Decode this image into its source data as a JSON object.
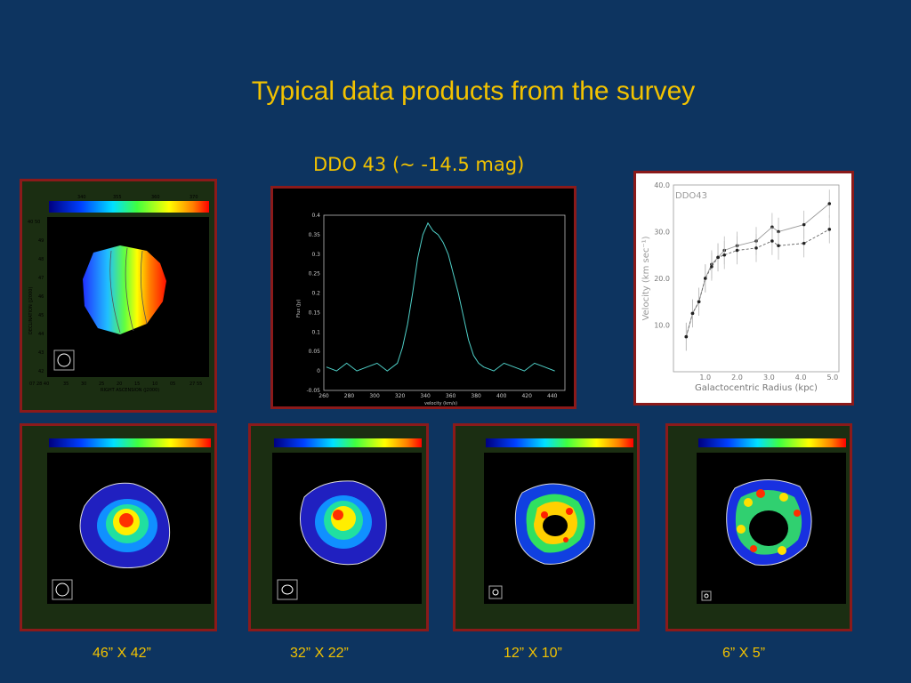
{
  "slide": {
    "title": "Typical data products from the survey",
    "subtitle": "DDO 43 (~ -14.5 mag)"
  },
  "velocity_map": {
    "colorbar_ticks": [
      "340",
      "355",
      "360",
      "370"
    ],
    "dec_ticks": [
      "40 50",
      "49",
      "48",
      "47",
      "46",
      "45",
      "44",
      "43",
      "42"
    ],
    "ra_ticks": [
      "07 28 40",
      "35",
      "30",
      "25",
      "20",
      "15",
      "10",
      "05",
      "27 55"
    ],
    "ylabel": "DECLINATION (J2000)",
    "xlabel": "RIGHT ASCENSION (J2000)"
  },
  "spectrum": {
    "ylabel": "Flux (Jy)",
    "xlabel": "velocity (km/s)",
    "y_ticks": [
      "0.4",
      "0.35",
      "0.3",
      "0.25",
      "0.2",
      "0.15",
      "0.1",
      "0.05",
      "0",
      "-0.05"
    ],
    "x_ticks": [
      "260",
      "280",
      "300",
      "320",
      "340",
      "360",
      "380",
      "400",
      "420",
      "440"
    ]
  },
  "rotation_curve": {
    "label": "DDO43",
    "ylabel": "Velocity (km sec⁻¹)",
    "xlabel": "Galactocentric Radius (kpc)",
    "y_ticks": [
      "40.0",
      "30.0",
      "20.0",
      "10.0"
    ],
    "x_ticks": [
      "1.0",
      "2.0",
      "3.0",
      "4.0",
      "5.0"
    ]
  },
  "chart_data": [
    {
      "type": "line",
      "title": "",
      "xlabel": "velocity (km/s)",
      "ylabel": "Flux (Jy)",
      "xlim": [
        260,
        450
      ],
      "ylim": [
        -0.05,
        0.4
      ],
      "series": [
        {
          "x": [
            262,
            270,
            278,
            286,
            294,
            302,
            310,
            318,
            322,
            326,
            330,
            334,
            338,
            342,
            346,
            350,
            354,
            358,
            362,
            366,
            370,
            374,
            378,
            382,
            386,
            394,
            402,
            410,
            418,
            426,
            434,
            442
          ],
          "values": [
            0.01,
            0.0,
            0.02,
            0.0,
            0.01,
            0.02,
            0.0,
            0.02,
            0.06,
            0.12,
            0.2,
            0.29,
            0.35,
            0.38,
            0.36,
            0.35,
            0.33,
            0.3,
            0.25,
            0.2,
            0.14,
            0.08,
            0.04,
            0.02,
            0.01,
            0.0,
            0.02,
            0.01,
            0.0,
            0.02,
            0.01,
            0.0
          ]
        }
      ]
    },
    {
      "type": "line",
      "title": "",
      "xlabel": "Galactocentric Radius (kpc)",
      "ylabel": "Velocity (km sec⁻¹)",
      "xlim": [
        0,
        5.2
      ],
      "ylim": [
        0,
        40
      ],
      "series": [
        {
          "x": [
            0.4,
            0.6,
            0.8,
            1.0,
            1.2,
            1.4,
            1.6,
            2.0,
            2.6,
            3.1,
            3.3,
            4.1,
            4.9
          ],
          "values": [
            7.5,
            12.5,
            15,
            20,
            23,
            24.5,
            26,
            27,
            28,
            31,
            30,
            31.5,
            36
          ]
        },
        {
          "x": [
            0.4,
            0.6,
            0.8,
            1.0,
            1.2,
            1.4,
            1.6,
            2.0,
            2.6,
            3.1,
            3.3,
            4.1,
            4.9
          ],
          "values": [
            7.5,
            12.5,
            15,
            20,
            22.5,
            24.5,
            25,
            26,
            26.5,
            28,
            27,
            27.5,
            30.5
          ]
        }
      ]
    }
  ],
  "captions": [
    "46” X 42”",
    "32” X 22”",
    "12” X 10”",
    "6” X 5”"
  ],
  "colors": {
    "background": "#0d3460",
    "title": "#f2c200",
    "frame": "#8b1a1a"
  }
}
